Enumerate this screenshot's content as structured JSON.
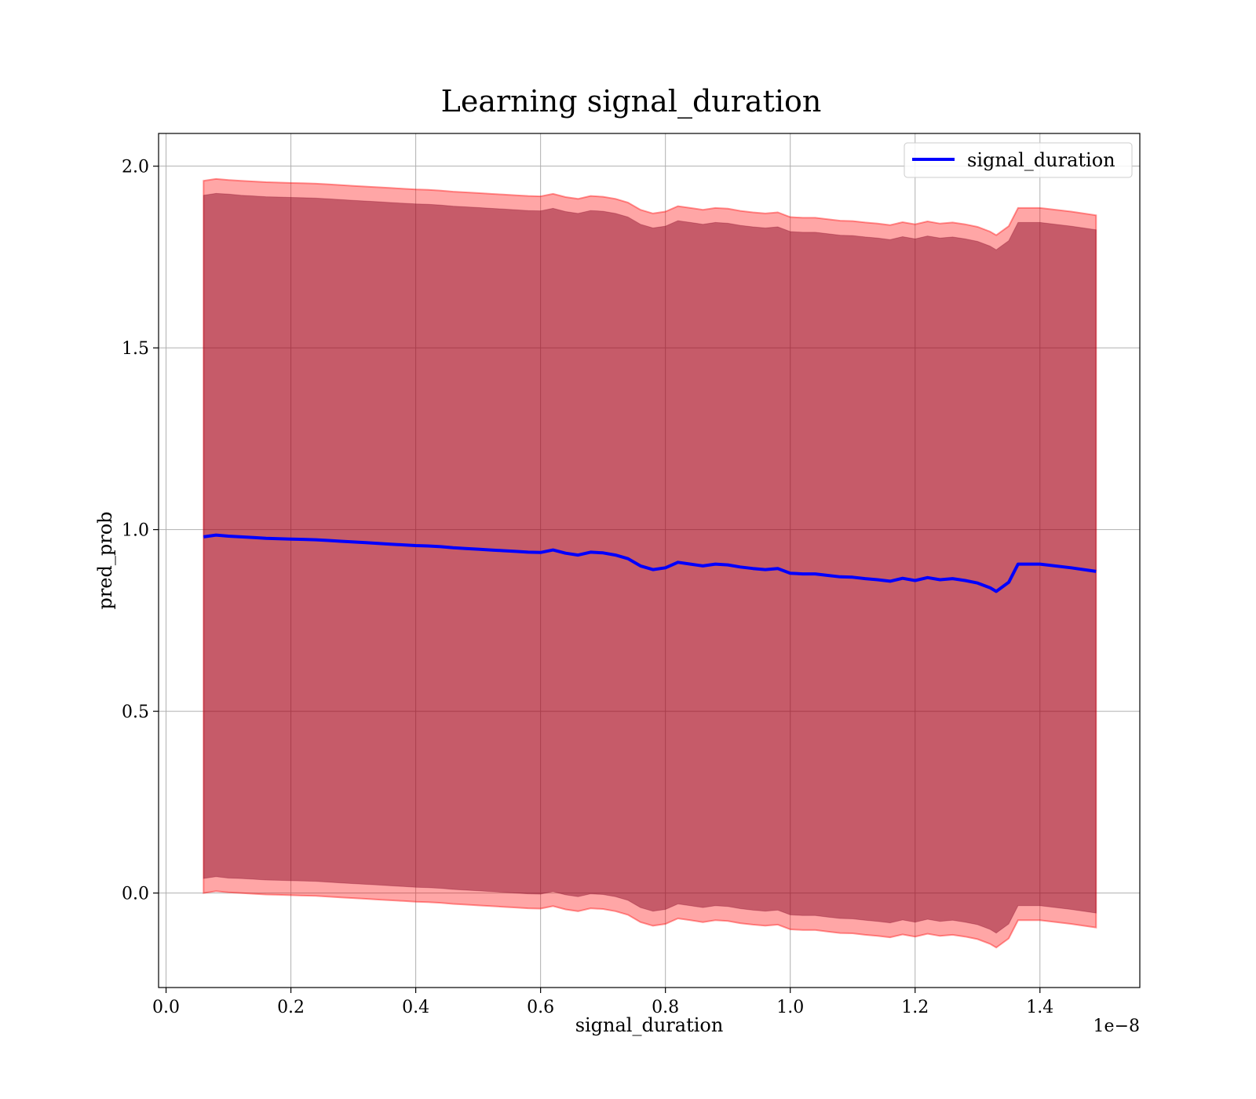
{
  "chart_data": {
    "type": "line",
    "title": "Learning signal_duration",
    "xlabel": "signal_duration",
    "ylabel": "pred_prob",
    "x_offset_label": "1e−8",
    "xlim": [
      -0.012,
      1.56
    ],
    "ylim": [
      -0.26,
      2.09
    ],
    "x_ticks": [
      0.0,
      0.2,
      0.4,
      0.6,
      0.8,
      1.0,
      1.2,
      1.4
    ],
    "x_tick_labels": [
      "0.0",
      "0.2",
      "0.4",
      "0.6",
      "0.8",
      "1.0",
      "1.2",
      "1.4"
    ],
    "y_ticks": [
      0.0,
      0.5,
      1.0,
      1.5,
      2.0
    ],
    "y_tick_labels": [
      "0.0",
      "0.5",
      "1.0",
      "1.5",
      "2.0"
    ],
    "grid": true,
    "legend_position": "top-right",
    "colors": {
      "line": "#0000ff",
      "inner_band": "#800020",
      "outer_band": "#ff0000",
      "band_blend": "#a0717b"
    },
    "series": [
      {
        "name": "signal_duration",
        "x": [
          0.06,
          0.08,
          0.1,
          0.12,
          0.14,
          0.16,
          0.18,
          0.2,
          0.22,
          0.24,
          0.26,
          0.28,
          0.3,
          0.32,
          0.34,
          0.36,
          0.38,
          0.4,
          0.42,
          0.44,
          0.46,
          0.48,
          0.5,
          0.52,
          0.54,
          0.56,
          0.58,
          0.6,
          0.62,
          0.64,
          0.66,
          0.68,
          0.7,
          0.72,
          0.74,
          0.76,
          0.78,
          0.8,
          0.82,
          0.84,
          0.86,
          0.88,
          0.9,
          0.92,
          0.94,
          0.96,
          0.98,
          1.0,
          1.02,
          1.04,
          1.06,
          1.08,
          1.1,
          1.12,
          1.14,
          1.16,
          1.18,
          1.2,
          1.22,
          1.24,
          1.26,
          1.28,
          1.3,
          1.32,
          1.33,
          1.35,
          1.365,
          1.4,
          1.45,
          1.49
        ],
        "y": [
          0.98,
          0.985,
          0.982,
          0.98,
          0.978,
          0.976,
          0.975,
          0.974,
          0.973,
          0.972,
          0.97,
          0.968,
          0.966,
          0.964,
          0.962,
          0.96,
          0.958,
          0.956,
          0.955,
          0.953,
          0.95,
          0.948,
          0.946,
          0.944,
          0.942,
          0.94,
          0.938,
          0.937,
          0.944,
          0.935,
          0.93,
          0.938,
          0.936,
          0.93,
          0.92,
          0.9,
          0.89,
          0.895,
          0.91,
          0.905,
          0.9,
          0.905,
          0.903,
          0.897,
          0.893,
          0.89,
          0.893,
          0.88,
          0.878,
          0.878,
          0.874,
          0.87,
          0.869,
          0.865,
          0.862,
          0.858,
          0.866,
          0.86,
          0.868,
          0.862,
          0.865,
          0.86,
          0.853,
          0.84,
          0.83,
          0.855,
          0.905,
          0.905,
          0.895,
          0.885
        ],
        "inner_upper": [
          1.92,
          1.925,
          1.923,
          1.92,
          1.918,
          1.916,
          1.915,
          1.914,
          1.913,
          1.912,
          1.91,
          1.908,
          1.906,
          1.904,
          1.902,
          1.9,
          1.898,
          1.896,
          1.895,
          1.893,
          1.89,
          1.888,
          1.886,
          1.884,
          1.882,
          1.88,
          1.878,
          1.877,
          1.884,
          1.875,
          1.87,
          1.878,
          1.876,
          1.87,
          1.86,
          1.84,
          1.83,
          1.835,
          1.85,
          1.845,
          1.84,
          1.845,
          1.843,
          1.837,
          1.833,
          1.83,
          1.833,
          1.82,
          1.818,
          1.818,
          1.814,
          1.81,
          1.809,
          1.805,
          1.802,
          1.798,
          1.806,
          1.8,
          1.808,
          1.802,
          1.805,
          1.8,
          1.793,
          1.78,
          1.77,
          1.795,
          1.845,
          1.845,
          1.835,
          1.825
        ],
        "inner_lower": [
          0.04,
          0.045,
          0.041,
          0.04,
          0.038,
          0.036,
          0.035,
          0.034,
          0.033,
          0.032,
          0.03,
          0.028,
          0.026,
          0.024,
          0.022,
          0.02,
          0.018,
          0.016,
          0.015,
          0.013,
          0.01,
          0.008,
          0.006,
          0.004,
          0.002,
          0.0,
          -0.002,
          -0.003,
          0.004,
          -0.005,
          -0.01,
          -0.002,
          -0.004,
          -0.01,
          -0.02,
          -0.04,
          -0.05,
          -0.045,
          -0.03,
          -0.035,
          -0.04,
          -0.035,
          -0.037,
          -0.043,
          -0.047,
          -0.05,
          -0.047,
          -0.06,
          -0.062,
          -0.062,
          -0.066,
          -0.07,
          -0.071,
          -0.075,
          -0.078,
          -0.082,
          -0.074,
          -0.08,
          -0.072,
          -0.078,
          -0.075,
          -0.08,
          -0.087,
          -0.1,
          -0.11,
          -0.085,
          -0.035,
          -0.035,
          -0.045,
          -0.055
        ],
        "outer_upper": [
          1.96,
          1.965,
          1.962,
          1.96,
          1.958,
          1.956,
          1.955,
          1.954,
          1.953,
          1.952,
          1.95,
          1.948,
          1.946,
          1.944,
          1.942,
          1.94,
          1.938,
          1.936,
          1.935,
          1.933,
          1.93,
          1.928,
          1.926,
          1.924,
          1.922,
          1.92,
          1.918,
          1.917,
          1.924,
          1.915,
          1.91,
          1.918,
          1.916,
          1.91,
          1.9,
          1.88,
          1.87,
          1.875,
          1.89,
          1.885,
          1.88,
          1.885,
          1.883,
          1.877,
          1.873,
          1.87,
          1.873,
          1.86,
          1.858,
          1.858,
          1.854,
          1.85,
          1.849,
          1.845,
          1.842,
          1.838,
          1.846,
          1.84,
          1.848,
          1.842,
          1.845,
          1.84,
          1.833,
          1.82,
          1.81,
          1.835,
          1.885,
          1.885,
          1.875,
          1.865
        ],
        "outer_lower": [
          0.0,
          0.005,
          0.002,
          0.0,
          -0.002,
          -0.004,
          -0.005,
          -0.006,
          -0.007,
          -0.008,
          -0.01,
          -0.012,
          -0.014,
          -0.016,
          -0.018,
          -0.02,
          -0.022,
          -0.024,
          -0.025,
          -0.027,
          -0.03,
          -0.032,
          -0.034,
          -0.036,
          -0.038,
          -0.04,
          -0.042,
          -0.043,
          -0.036,
          -0.045,
          -0.05,
          -0.042,
          -0.044,
          -0.05,
          -0.06,
          -0.08,
          -0.09,
          -0.085,
          -0.07,
          -0.075,
          -0.08,
          -0.075,
          -0.077,
          -0.083,
          -0.087,
          -0.09,
          -0.087,
          -0.1,
          -0.102,
          -0.102,
          -0.106,
          -0.11,
          -0.111,
          -0.115,
          -0.118,
          -0.122,
          -0.114,
          -0.12,
          -0.112,
          -0.118,
          -0.115,
          -0.12,
          -0.127,
          -0.14,
          -0.15,
          -0.125,
          -0.075,
          -0.075,
          -0.085,
          -0.095
        ]
      }
    ]
  }
}
